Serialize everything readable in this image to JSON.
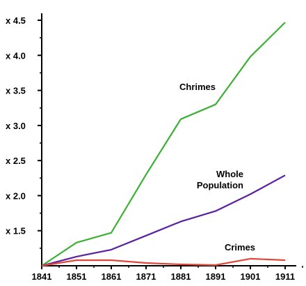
{
  "chart_data": {
    "type": "line",
    "title": "",
    "xlabel": "",
    "ylabel": "",
    "x": [
      1841,
      1851,
      1861,
      1871,
      1881,
      1891,
      1901,
      1911
    ],
    "xlim": [
      1841,
      1911
    ],
    "ylim": [
      1.0,
      4.6
    ],
    "y_ticks": [
      1.5,
      2.0,
      2.5,
      3.0,
      3.5,
      4.0,
      4.5
    ],
    "y_tick_labels": [
      "x 1.5",
      "x 2.0",
      "x 2.5",
      "x 3.0",
      "x 3.5",
      "x 4.0",
      "x 4.5"
    ],
    "x_tick_labels": [
      "1841",
      "1851",
      "1861",
      "1871",
      "1881",
      "1891",
      "1901",
      "1911"
    ],
    "grid": false,
    "legend": "none",
    "series": [
      {
        "name": "Chrimes",
        "label_lines": [
          "Chrimes"
        ],
        "color": "#3cb034",
        "values": [
          1.0,
          1.33,
          1.47,
          2.3,
          3.09,
          3.3,
          3.98,
          4.47
        ]
      },
      {
        "name": "Whole Population",
        "label_lines": [
          "Whole",
          "Population"
        ],
        "color": "#5a20a0",
        "values": [
          1.0,
          1.13,
          1.23,
          1.43,
          1.63,
          1.78,
          2.02,
          2.29
        ]
      },
      {
        "name": "Crimes",
        "label_lines": [
          "Crimes"
        ],
        "color": "#e0483a",
        "values": [
          1.0,
          1.08,
          1.08,
          1.04,
          1.02,
          1.01,
          1.1,
          1.08
        ]
      }
    ]
  }
}
